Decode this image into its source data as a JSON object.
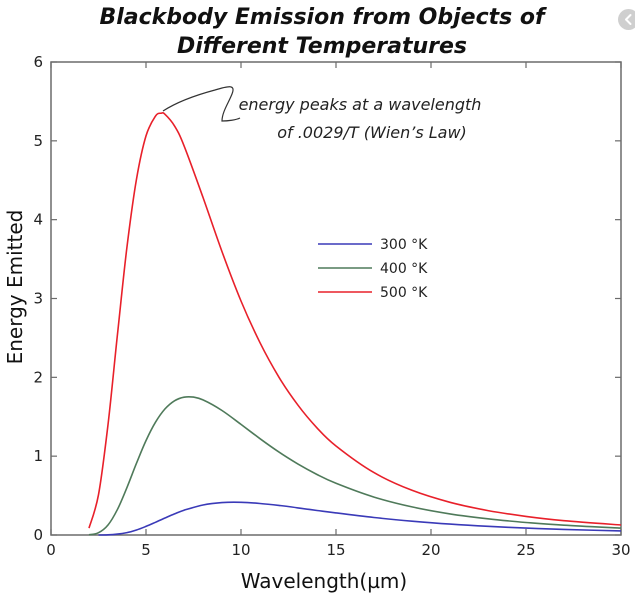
{
  "chart_data": {
    "type": "line",
    "title": [
      "Blackbody Emission from Objects of",
      "Different Temperatures"
    ],
    "xlabel": "Wavelength(µm)",
    "ylabel": "Energy Emitted",
    "xlim": [
      0,
      30
    ],
    "ylim": [
      0,
      6
    ],
    "xticks": [
      0,
      5,
      10,
      15,
      20,
      25,
      30
    ],
    "yticks": [
      0,
      1,
      2,
      3,
      4,
      5,
      6
    ],
    "grid": false,
    "legend_position": "center-right",
    "annotation": {
      "lines": [
        "energy peaks at a wavelength",
        "of .0029/T (Wien’s Law)"
      ],
      "points_to": {
        "x": 6,
        "y": 5.34
      }
    },
    "series": [
      {
        "name": "300 °K",
        "color": "#3a3ab8",
        "x": [
          2.5,
          3,
          3.5,
          4,
          4.5,
          5,
          5.5,
          6,
          6.5,
          7,
          8,
          9,
          10,
          11,
          12,
          13,
          14,
          15,
          17,
          19,
          21,
          23,
          25,
          27,
          30
        ],
        "y": [
          0.0002,
          0.0023,
          0.011,
          0.03,
          0.063,
          0.109,
          0.161,
          0.216,
          0.268,
          0.314,
          0.38,
          0.411,
          0.415,
          0.4,
          0.375,
          0.344,
          0.311,
          0.28,
          0.222,
          0.175,
          0.138,
          0.11,
          0.088,
          0.071,
          0.052
        ]
      },
      {
        "name": "400 °K",
        "color": "#4f7a5a",
        "x": [
          2,
          2.5,
          3,
          3.5,
          4,
          4.5,
          5,
          5.5,
          6,
          6.5,
          7,
          7.5,
          8,
          9,
          10,
          11,
          12,
          13,
          14,
          15,
          17,
          19,
          21,
          23,
          25,
          27,
          30
        ],
        "y": [
          0.002,
          0.029,
          0.127,
          0.326,
          0.604,
          0.911,
          1.198,
          1.431,
          1.599,
          1.702,
          1.748,
          1.749,
          1.714,
          1.579,
          1.403,
          1.222,
          1.051,
          0.9,
          0.768,
          0.656,
          0.481,
          0.357,
          0.268,
          0.205,
          0.159,
          0.124,
          0.088
        ]
      },
      {
        "name": "500 °K",
        "color": "#e8202a",
        "x": [
          2,
          2.5,
          3,
          3.5,
          4,
          4.5,
          5,
          5.5,
          5.8,
          6,
          6.5,
          7,
          8,
          9,
          10,
          11,
          12,
          13,
          14,
          15,
          17,
          19,
          21,
          23,
          25,
          27,
          30
        ],
        "y": [
          0.088,
          0.511,
          1.399,
          2.548,
          3.657,
          4.514,
          5.062,
          5.314,
          5.35,
          5.337,
          5.19,
          4.938,
          4.282,
          3.595,
          2.968,
          2.439,
          2.001,
          1.646,
          1.359,
          1.129,
          0.791,
          0.567,
          0.415,
          0.31,
          0.236,
          0.182,
          0.127
        ]
      }
    ]
  },
  "nav": {
    "prev_icon": "chevron-left-icon"
  }
}
